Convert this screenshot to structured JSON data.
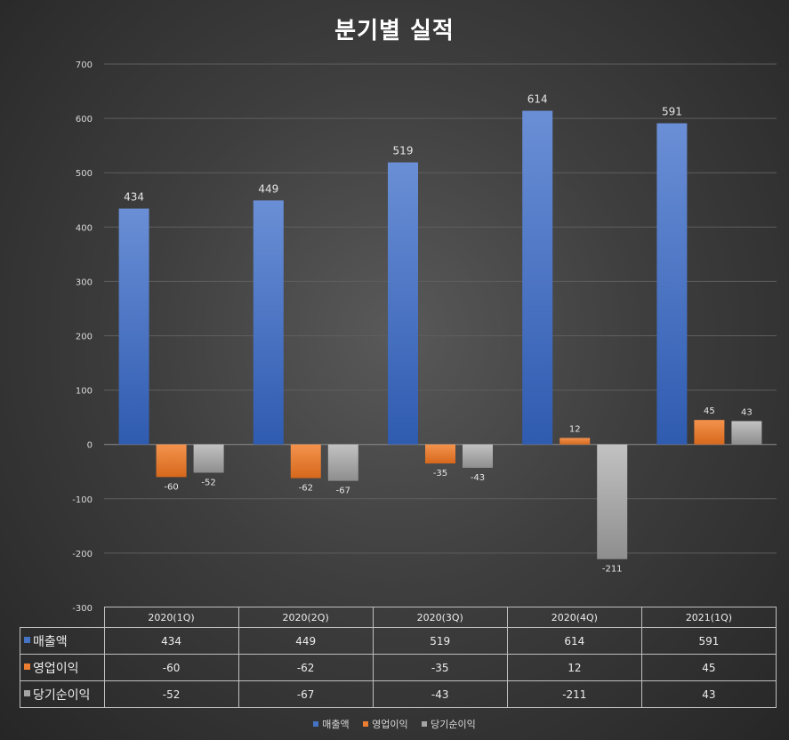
{
  "chart_data": {
    "type": "bar",
    "title": "분기별 실적",
    "categories": [
      "2020(1Q)",
      "2020(2Q)",
      "2020(3Q)",
      "2020(4Q)",
      "2021(1Q)"
    ],
    "series": [
      {
        "name": "매출액",
        "values": [
          434,
          449,
          519,
          614,
          591
        ],
        "color": "#4472c4"
      },
      {
        "name": "영업이익",
        "values": [
          -60,
          -62,
          -35,
          12,
          45
        ],
        "color": "#ed7d31"
      },
      {
        "name": "당기순이익",
        "values": [
          -52,
          -67,
          -43,
          -211,
          43
        ],
        "color": "#a5a5a5"
      }
    ],
    "ylim": [
      -300,
      700
    ],
    "yticks": [
      700,
      600,
      500,
      400,
      300,
      200,
      100,
      0,
      -100,
      -200,
      -300
    ],
    "grid": true,
    "data_table": true,
    "legend_position": "bottom"
  }
}
